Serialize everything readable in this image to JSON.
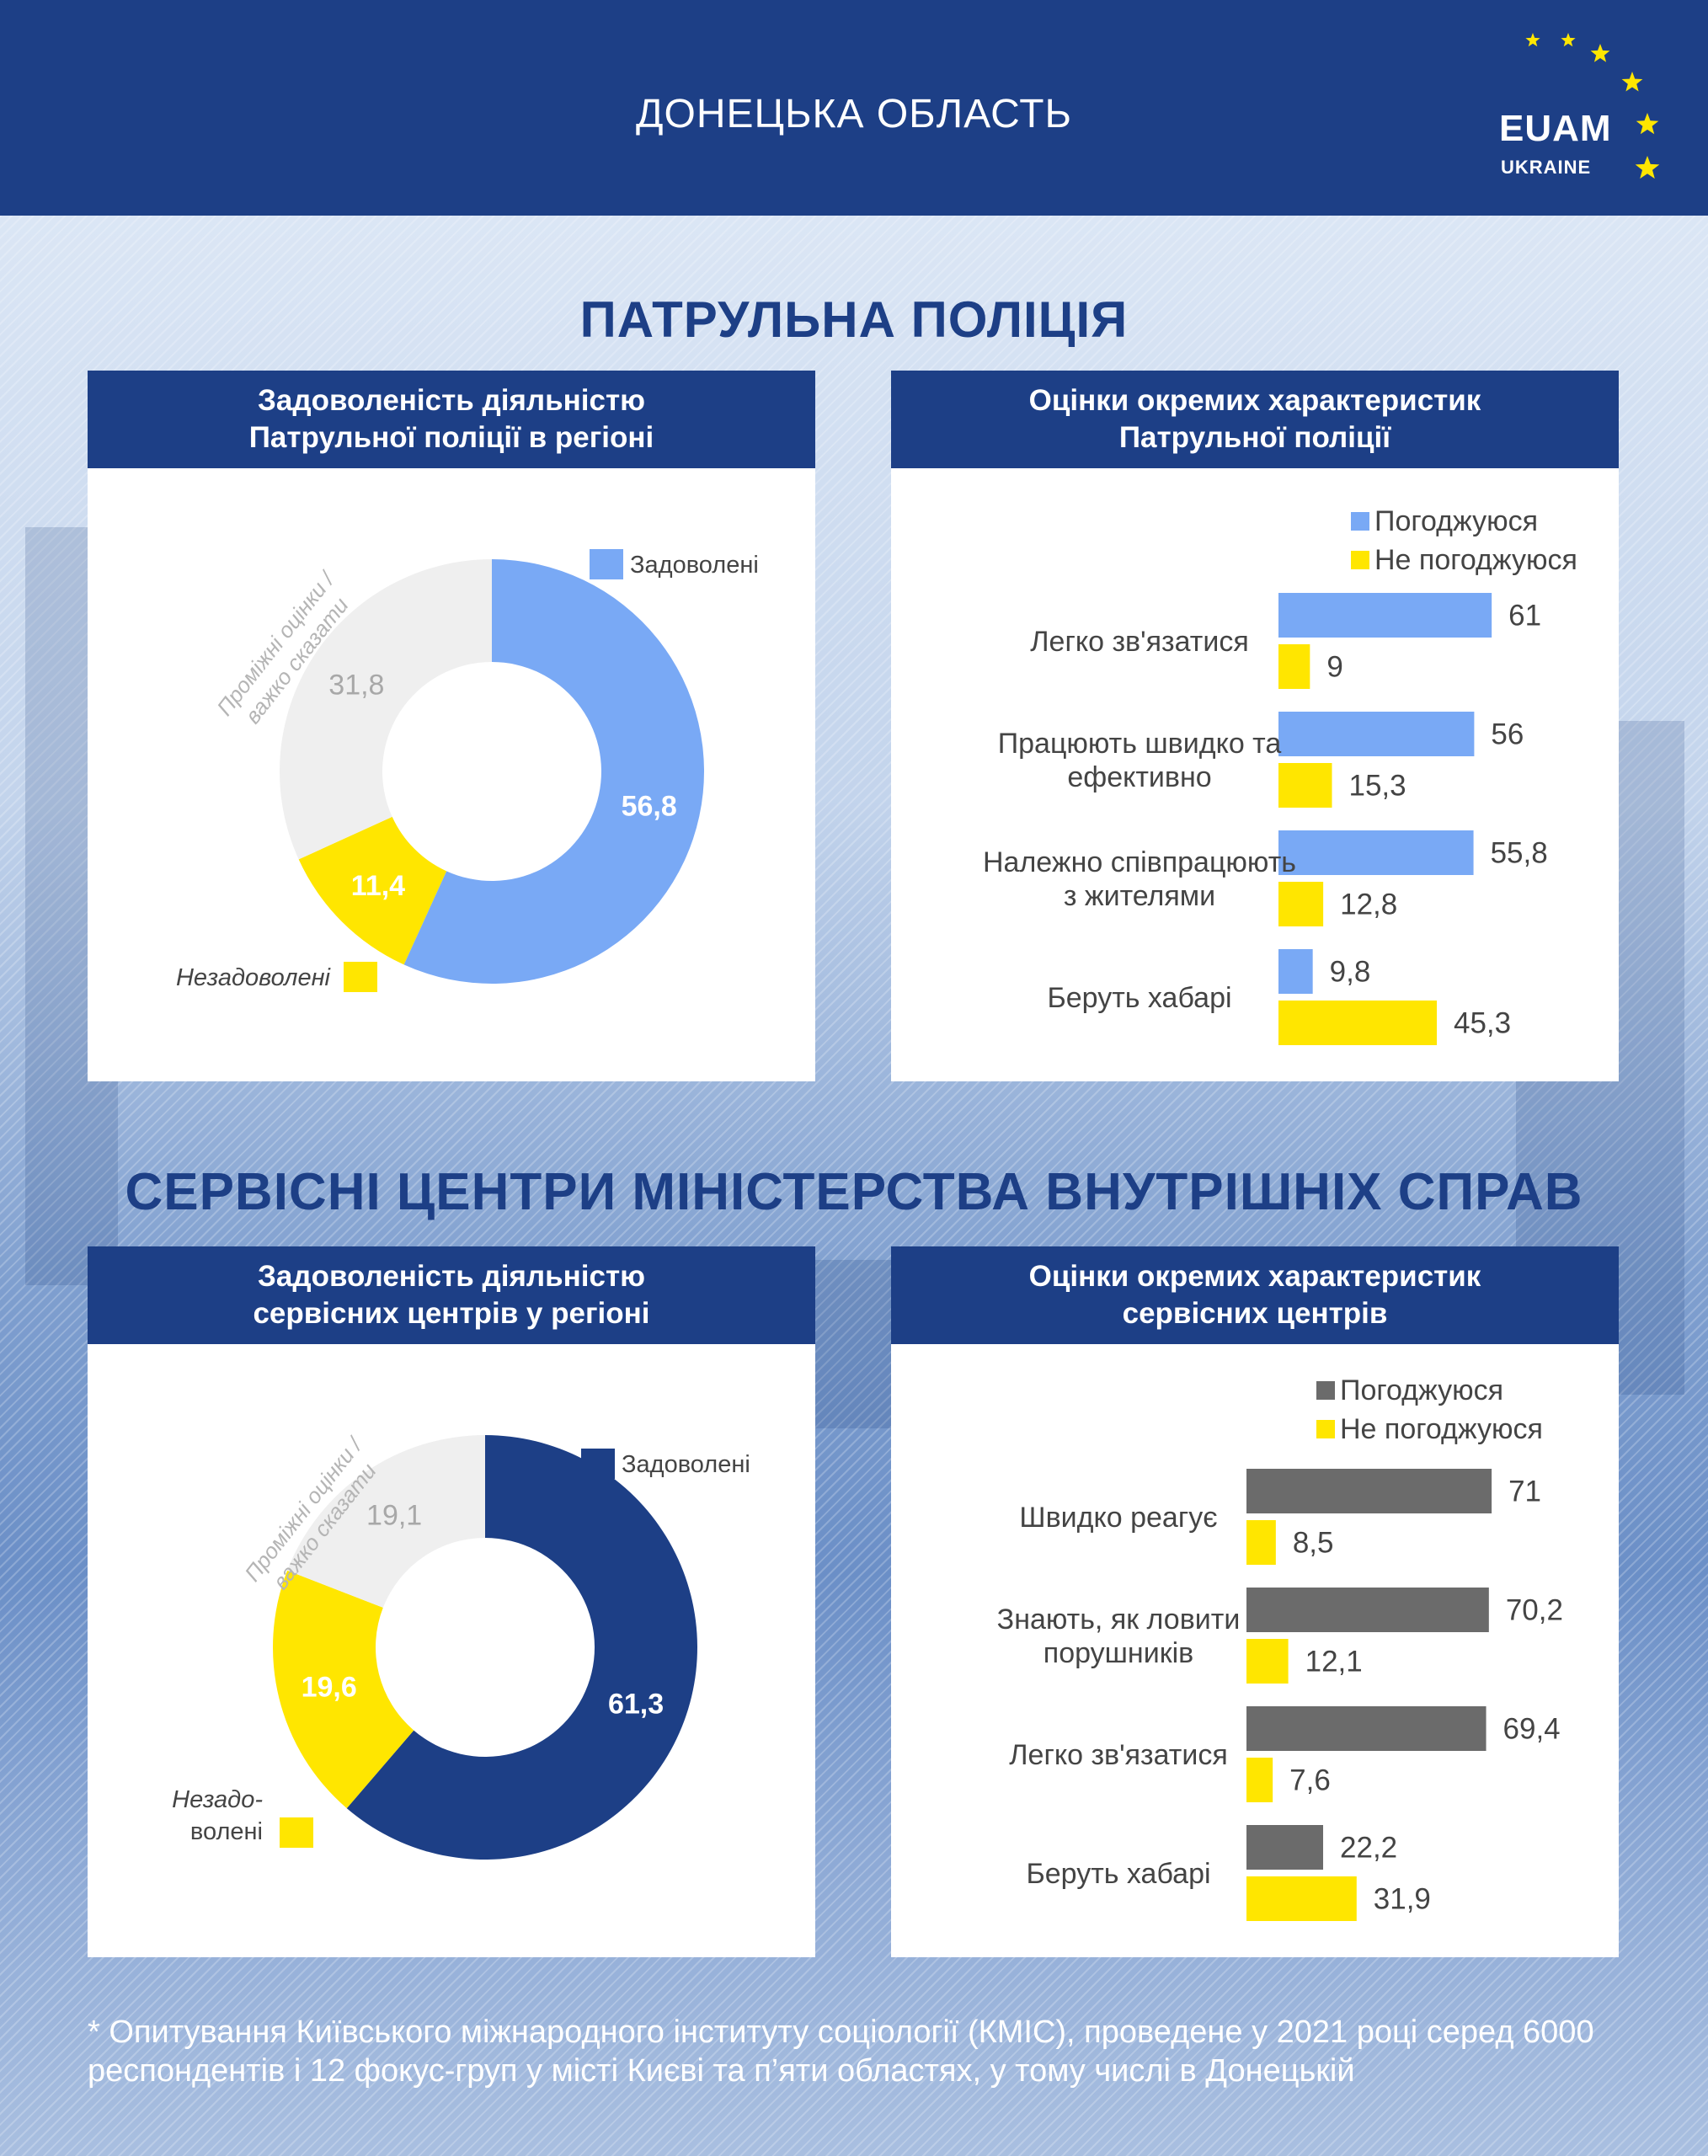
{
  "header": {
    "region": "ДОНЕЦЬКА ОБЛАСТЬ",
    "logo_main": "EUAM",
    "logo_sub": "UKRAINE"
  },
  "sections": [
    {
      "title": "ПАТРУЛЬНА ПОЛІЦІЯ"
    },
    {
      "title": "СЕРВІСНІ ЦЕНТРИ МІНІСТЕРСТВА ВНУТРІШНІХ СПРАВ"
    }
  ],
  "panels": {
    "police_pie": {
      "title_line1": "Задоволеність діяльністю",
      "title_line2": "Патрульної поліції в регіоні"
    },
    "police_bars": {
      "title_line1": "Оцінки окремих характеристик",
      "title_line2": "Патрульної поліції"
    },
    "service_pie": {
      "title_line1": "Задоволеність діяльністю",
      "title_line2": "сервісних центрів у регіоні"
    },
    "service_bars": {
      "title_line1": "Оцінки окремих характеристик",
      "title_line2": "сервісних центрів"
    }
  },
  "footnote": "* Опитування Київського міжнародного інституту соціології (КМІС), проведене у 2021 році серед 6000 респондентів і 12 фокус-груп у місті Києві та п’яти областях, у тому числі в Донецькій",
  "colors": {
    "navy": "#1d3f86",
    "light_blue": "#79a9f5",
    "yellow": "#ffe600",
    "gray": "#6b6b6b",
    "light_gray": "#efefef"
  },
  "chart_data": [
    {
      "type": "pie",
      "title": "",
      "slices": [
        {
          "label": "Задоволені",
          "value": 56.8,
          "display": "56,8",
          "color": "#79a9f5"
        },
        {
          "label": "Незадоволені",
          "value": 11.4,
          "display": "11,4",
          "color": "#ffe600"
        },
        {
          "label": "Проміжні оцінки / важко сказати",
          "value": 31.8,
          "display": "31,8",
          "color": "#efefef"
        }
      ]
    },
    {
      "type": "bar",
      "orientation": "horizontal",
      "categories": [
        [
          "Легко зв'язатися"
        ],
        [
          "Працюють швидко та",
          "ефективно"
        ],
        [
          "Належно співпрацюють",
          "з жителями"
        ],
        [
          "Беруть хабарі"
        ]
      ],
      "series": [
        {
          "name": "Погоджуюся",
          "values": [
            61,
            56,
            55.8,
            9.8
          ],
          "labels": [
            "61",
            "56",
            "55,8",
            "9,8"
          ],
          "color": "#79a9f5"
        },
        {
          "name": "Не погоджуюся",
          "values": [
            9,
            15.3,
            12.8,
            45.3
          ],
          "labels": [
            "9",
            "15,3",
            "12,8",
            "45,3"
          ],
          "color": "#ffe600"
        }
      ],
      "legend": "top-right",
      "xlim": [
        0,
        100
      ]
    },
    {
      "type": "pie",
      "title": "",
      "slices": [
        {
          "label": "Задоволені",
          "value": 61.3,
          "display": "61,3",
          "color": "#1d3f86"
        },
        {
          "label": "Незадоволені",
          "value": 19.6,
          "display": "19,6",
          "color": "#ffe600"
        },
        {
          "label": "Проміжні оцінки / важко сказати",
          "value": 19.1,
          "display": "19,1",
          "color": "#efefef"
        }
      ]
    },
    {
      "type": "bar",
      "orientation": "horizontal",
      "categories": [
        [
          "Швидко реагує"
        ],
        [
          "Знають, як ловити",
          "порушників"
        ],
        [
          "Легко зв'язатися"
        ],
        [
          "Беруть хабарі"
        ]
      ],
      "series": [
        {
          "name": "Погоджуюся",
          "values": [
            71,
            70.2,
            69.4,
            22.2
          ],
          "labels": [
            "71",
            "70,2",
            "69,4",
            "22,2"
          ],
          "color": "#6b6b6b"
        },
        {
          "name": "Не погоджуюся",
          "values": [
            8.5,
            12.1,
            7.6,
            31.9
          ],
          "labels": [
            "8,5",
            "12,1",
            "7,6",
            "31,9"
          ],
          "color": "#ffe600"
        }
      ],
      "legend": "top-right",
      "xlim": [
        0,
        100
      ]
    }
  ],
  "pie_labels": {
    "police": {
      "satisfied": "Задоволені",
      "unsatisfied": "Незадоволені",
      "middle_line1": "Проміжні оцінки /",
      "middle_line2": "важко сказати"
    },
    "service": {
      "satisfied": "Задоволені",
      "unsatisfied_line1": "Незадо-",
      "unsatisfied_line2": "волені",
      "middle_line1": "Проміжні оцінки /",
      "middle_line2": "важко сказати"
    }
  }
}
